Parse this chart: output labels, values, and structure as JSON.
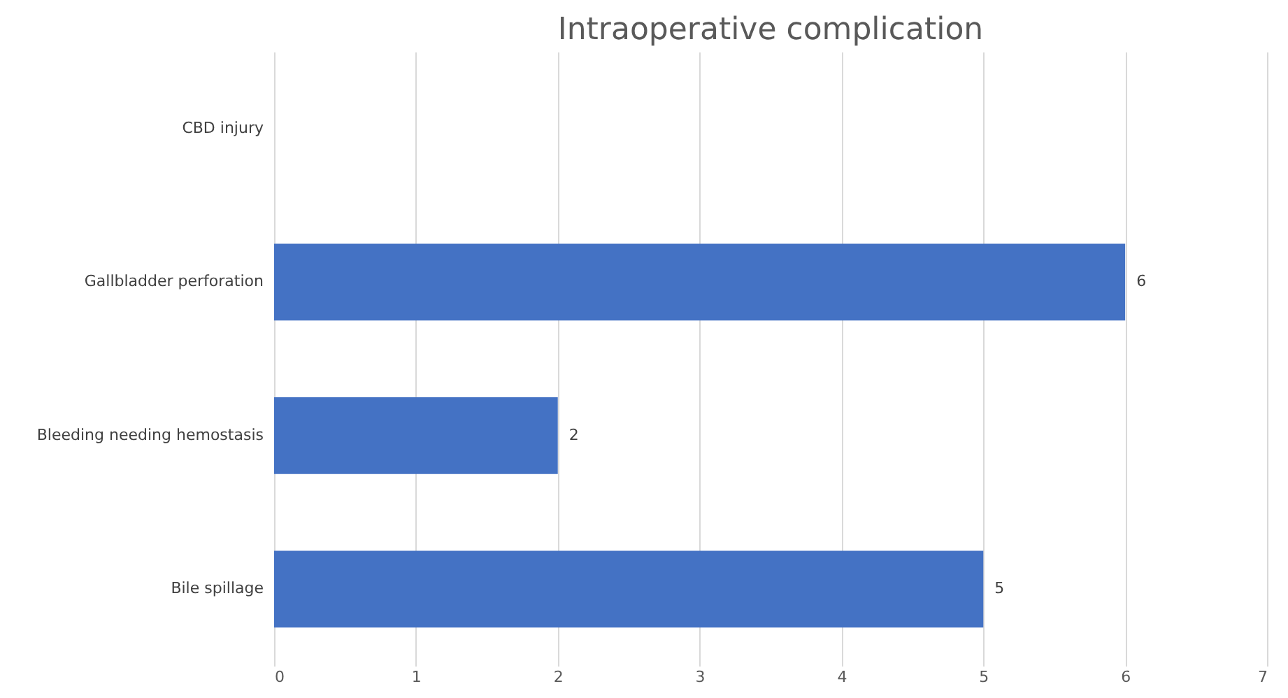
{
  "chart_data": {
    "type": "bar",
    "orientation": "horizontal",
    "title": "Intraoperative  complication",
    "categories": [
      "CBD injury",
      "Gallbladder perforation",
      "Bleeding needing hemostasis",
      "Bile spillage"
    ],
    "values": [
      0,
      6,
      2,
      5
    ],
    "value_labels": [
      null,
      "6",
      "2",
      "5"
    ],
    "color": "#4472c4",
    "xlim": [
      0,
      7
    ],
    "xticks": [
      0,
      1,
      2,
      3,
      4,
      5,
      6,
      7
    ],
    "grid": "x"
  }
}
